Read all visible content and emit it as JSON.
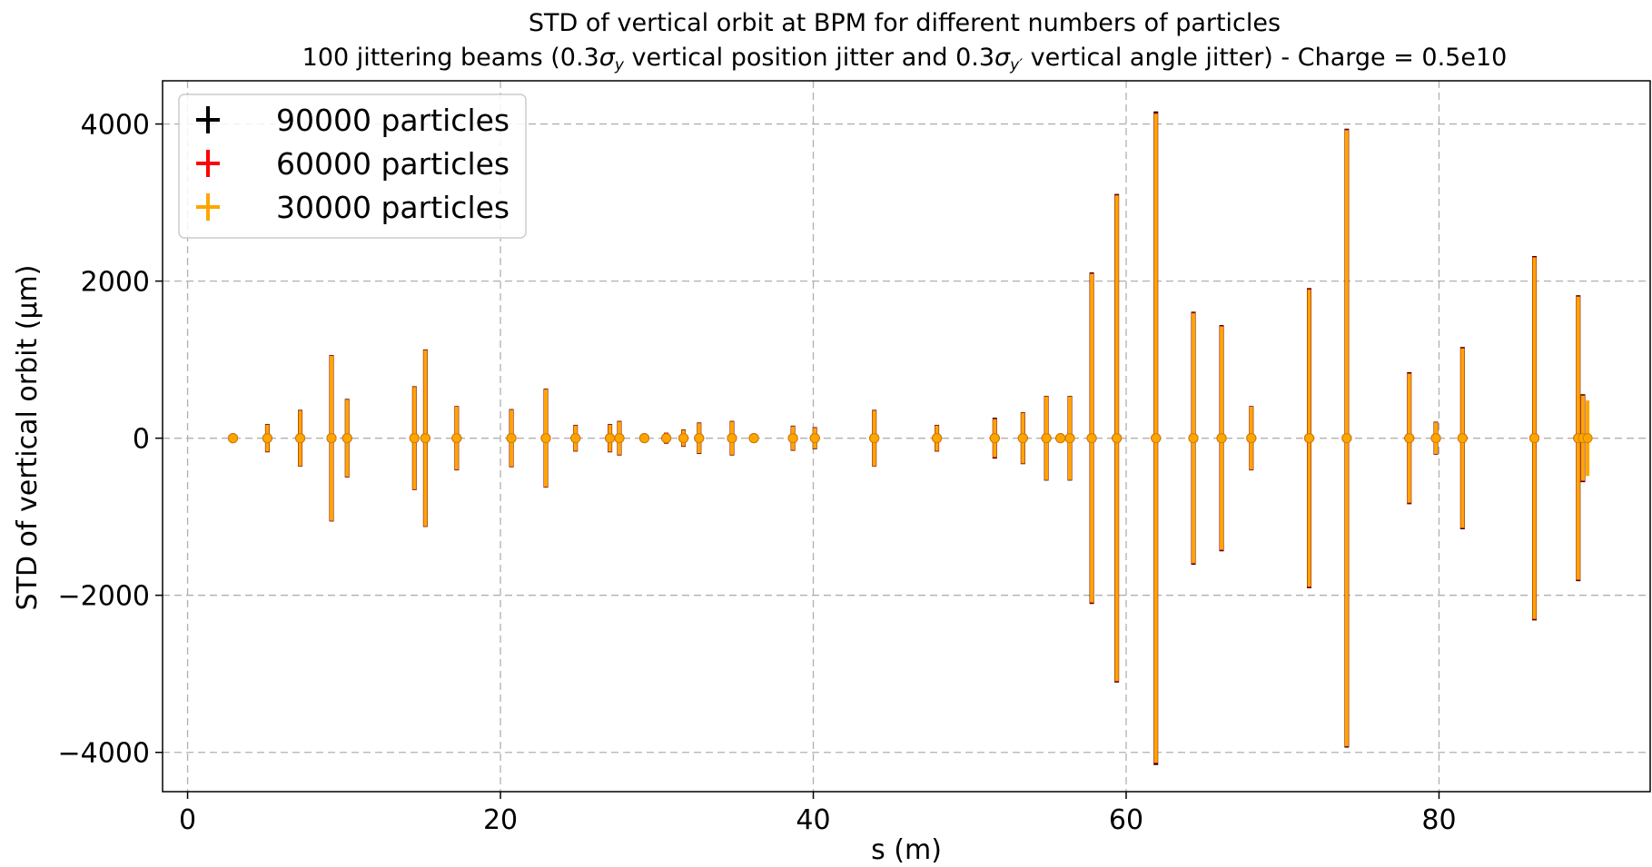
{
  "chart_data": {
    "type": "scatter",
    "title": "STD of vertical orbit at BPM for different numbers of particles",
    "subtitle": {
      "prefix": "100 jittering beams (0.3",
      "sym1": "σ",
      "sub1": "y",
      "middle": " vertical position jitter and 0.3",
      "sym2": "σ",
      "sub2": "y′",
      "suffix": " vertical angle jitter)  -  Charge = 0.5e10"
    },
    "xlabel": "s (m)",
    "ylabel": "STD of vertical orbit (µm)",
    "xlim": [
      -1.6,
      93.5
    ],
    "ylim": [
      -4500,
      4550
    ],
    "xticks": [
      0,
      20,
      40,
      60,
      80
    ],
    "xtick_labels": [
      "0",
      "20",
      "40",
      "60",
      "80"
    ],
    "yticks": [
      -4000,
      -2000,
      0,
      2000,
      4000
    ],
    "ytick_labels": [
      "−4000",
      "−2000",
      "0",
      "2000",
      "4000"
    ],
    "grid": true,
    "legend_position": "top-left",
    "series": [
      {
        "name": "90000 particles",
        "color": "#000000",
        "x": [
          2.9,
          5.1,
          7.2,
          9.2,
          10.2,
          14.5,
          15.2,
          17.2,
          20.7,
          22.9,
          24.8,
          27.0,
          27.6,
          29.2,
          30.6,
          31.7,
          32.7,
          34.8,
          36.2,
          38.7,
          40.1,
          43.9,
          47.9,
          51.6,
          53.4,
          54.9,
          55.8,
          56.4,
          57.8,
          59.4,
          61.9,
          64.3,
          66.1,
          68.0,
          71.7,
          74.1,
          78.1,
          79.8,
          81.5,
          86.1,
          88.9,
          89.2
        ],
        "y": [
          0,
          0,
          0,
          0,
          0,
          0,
          0,
          0,
          0,
          0,
          0,
          0,
          0,
          0,
          0,
          0,
          0,
          0,
          0,
          0,
          0,
          0,
          0,
          0,
          0,
          0,
          0,
          0,
          0,
          0,
          0,
          0,
          0,
          0,
          0,
          0,
          0,
          0,
          0,
          0,
          0,
          0
        ],
        "yerr": [
          60,
          180,
          360,
          1060,
          500,
          660,
          1130,
          410,
          370,
          630,
          170,
          180,
          220,
          40,
          70,
          110,
          200,
          220,
          40,
          160,
          140,
          360,
          170,
          260,
          330,
          540,
          30,
          540,
          2110,
          3110,
          4160,
          1610,
          1440,
          410,
          1910,
          3940,
          840,
          210,
          1160,
          2320,
          1820,
          560
        ]
      },
      {
        "name": "60000 particles",
        "color": "#ff0000",
        "x": [
          2.9,
          5.1,
          7.2,
          9.2,
          10.2,
          14.5,
          15.2,
          17.2,
          20.7,
          22.9,
          24.8,
          27.0,
          27.6,
          29.2,
          30.6,
          31.7,
          32.7,
          34.8,
          36.2,
          38.7,
          40.1,
          43.9,
          47.9,
          51.6,
          53.4,
          54.9,
          55.8,
          56.4,
          57.8,
          59.4,
          61.9,
          64.3,
          66.1,
          68.0,
          71.7,
          74.1,
          78.1,
          79.8,
          81.5,
          86.1,
          88.9,
          89.2
        ],
        "y": [
          0,
          0,
          0,
          0,
          0,
          0,
          0,
          0,
          0,
          0,
          0,
          0,
          0,
          0,
          0,
          0,
          0,
          0,
          0,
          0,
          0,
          0,
          0,
          0,
          0,
          0,
          0,
          0,
          0,
          0,
          0,
          0,
          0,
          0,
          0,
          0,
          0,
          0,
          0,
          0,
          0,
          0
        ],
        "yerr": [
          60,
          175,
          355,
          1055,
          495,
          655,
          1125,
          405,
          365,
          625,
          165,
          175,
          215,
          40,
          70,
          105,
          195,
          215,
          40,
          155,
          135,
          355,
          165,
          250,
          325,
          535,
          30,
          535,
          2100,
          3100,
          4140,
          1600,
          1430,
          405,
          1900,
          3930,
          830,
          205,
          1150,
          2310,
          1810,
          550
        ]
      },
      {
        "name": "30000 particles",
        "color": "#ffa500",
        "x": [
          2.9,
          5.1,
          7.2,
          9.2,
          10.2,
          14.5,
          15.2,
          17.2,
          20.7,
          22.9,
          24.8,
          27.0,
          27.6,
          29.2,
          30.6,
          31.7,
          32.7,
          34.8,
          36.2,
          38.7,
          40.1,
          43.9,
          47.9,
          51.6,
          53.4,
          54.9,
          55.8,
          56.4,
          57.8,
          59.4,
          61.9,
          64.3,
          66.1,
          68.0,
          71.7,
          74.1,
          78.1,
          79.8,
          81.5,
          86.1,
          88.9,
          89.2,
          89.5
        ],
        "y": [
          0,
          0,
          0,
          0,
          0,
          0,
          0,
          0,
          0,
          0,
          0,
          0,
          0,
          0,
          0,
          0,
          0,
          0,
          0,
          0,
          0,
          0,
          0,
          0,
          0,
          0,
          0,
          0,
          0,
          0,
          0,
          0,
          0,
          0,
          0,
          0,
          0,
          0,
          0,
          0,
          0,
          0,
          0
        ],
        "yerr": [
          50,
          170,
          350,
          1050,
          490,
          650,
          1120,
          400,
          360,
          620,
          160,
          170,
          210,
          30,
          60,
          100,
          190,
          210,
          30,
          150,
          130,
          350,
          160,
          240,
          320,
          530,
          20,
          530,
          2090,
          3090,
          4130,
          1590,
          1420,
          400,
          1890,
          3920,
          820,
          200,
          1140,
          2300,
          1800,
          540,
          480
        ]
      }
    ]
  }
}
